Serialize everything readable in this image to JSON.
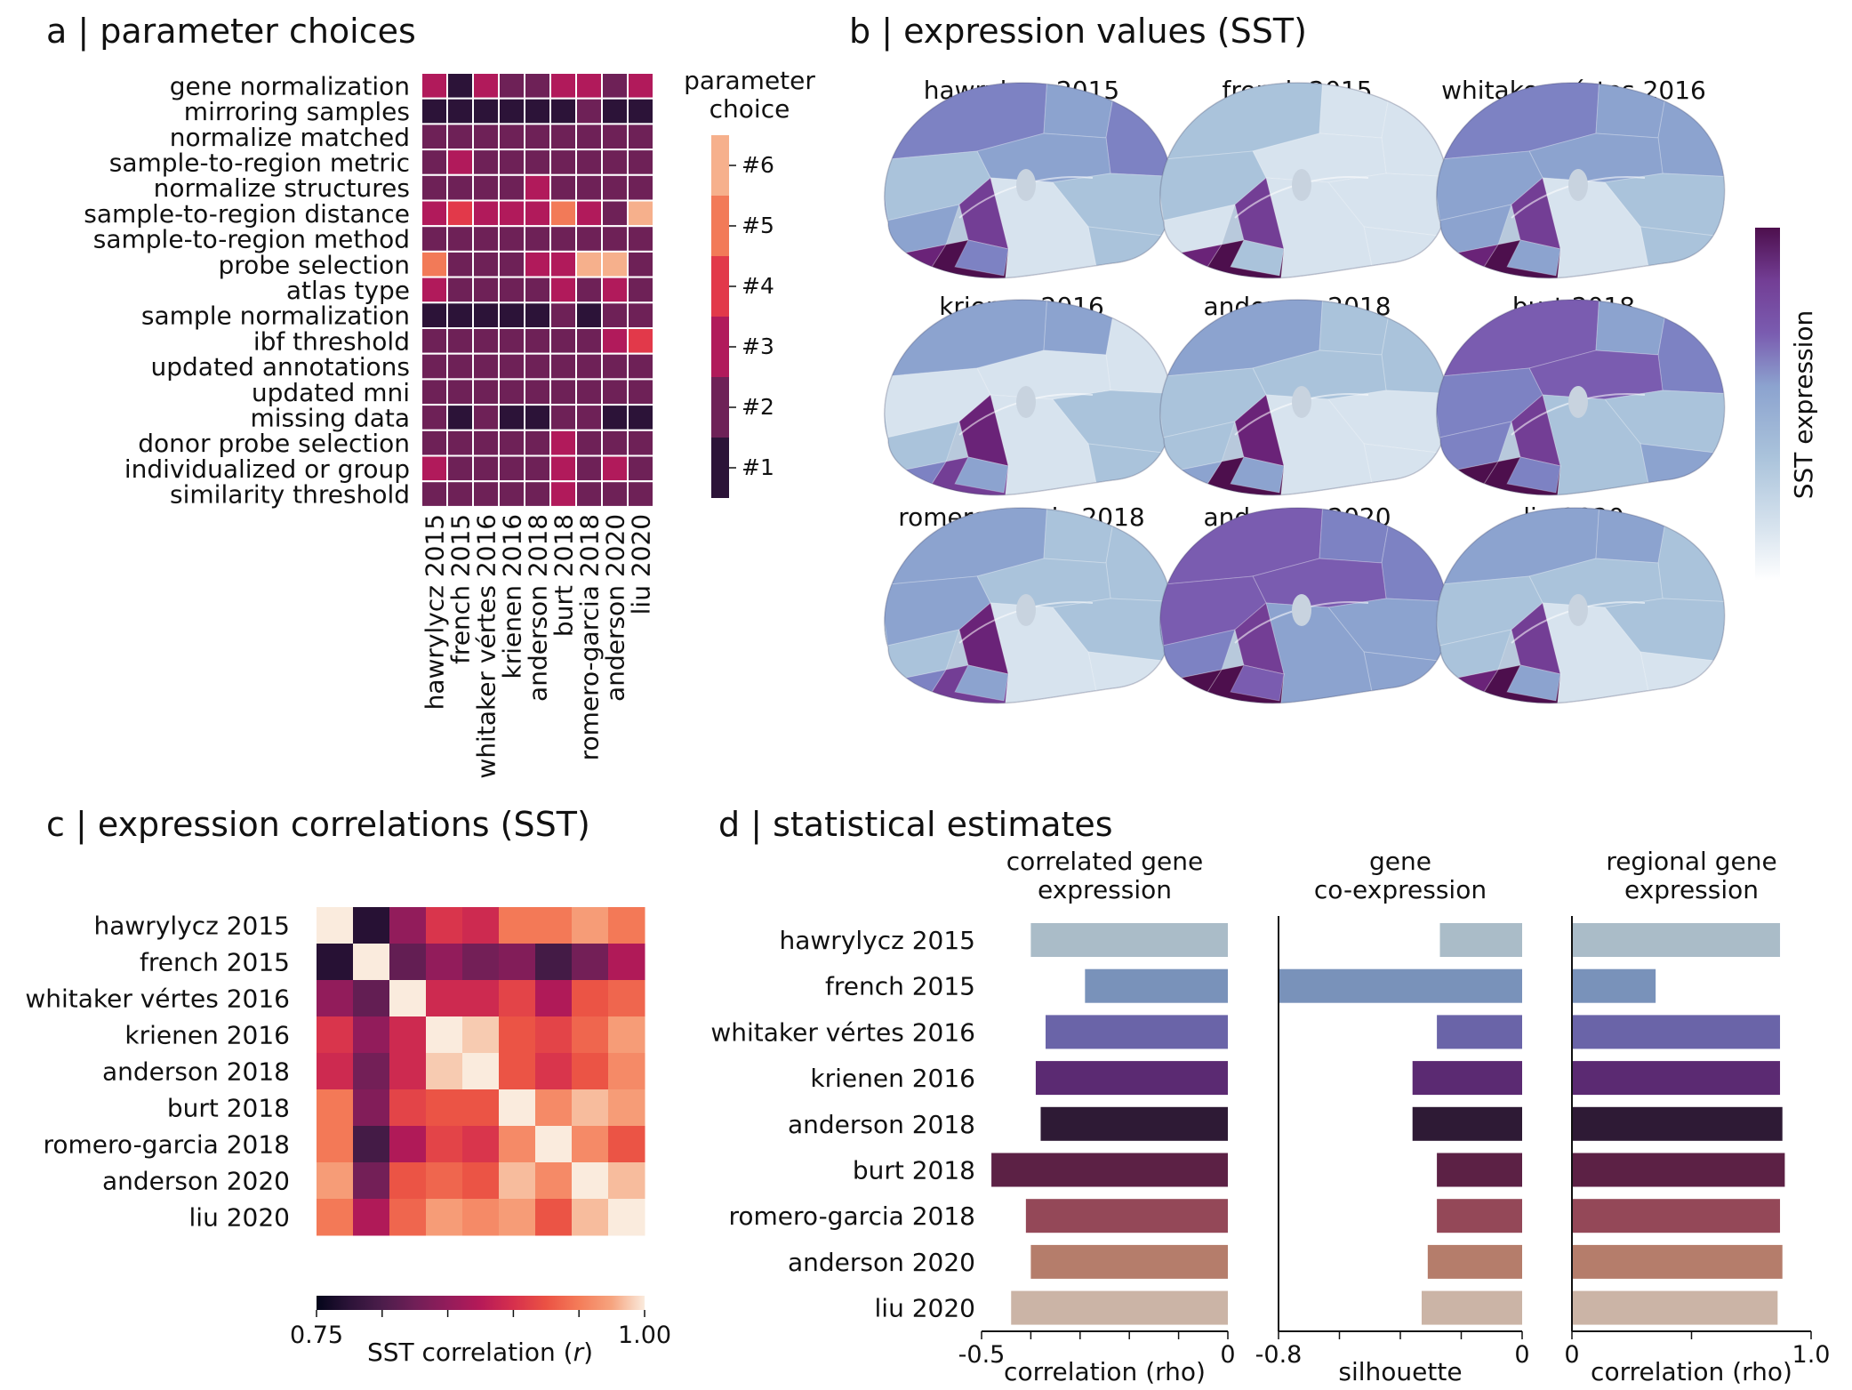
{
  "colors": {
    "rocket": [
      "#03051a",
      "#2c1338",
      "#4c1d4b",
      "#701f57",
      "#931c5b",
      "#b61a58",
      "#d6304d",
      "#eb5244",
      "#f47c59",
      "#f6a47f",
      "#f7c7ab",
      "#faebdd"
    ],
    "dense": [
      "#ffffff",
      "#d7e3ee",
      "#aac3db",
      "#8ca3cf",
      "#7d82c3",
      "#7a5cb0",
      "#733e95",
      "#6a2378",
      "#4d0f4d"
    ],
    "brain_base": "#b8c9dc",
    "bar_colors": [
      "#aabcc8",
      "#7992ba",
      "#6a64a8",
      "#5b2a72",
      "#2e1a35",
      "#5c2145",
      "#944858",
      "#b57d6b",
      "#cbb4a6"
    ],
    "grid_line": "#ffffff"
  },
  "panel_a": {
    "title": "a | parameter choices",
    "legend_title": [
      "parameter",
      "choice"
    ],
    "legend_items": [
      "#6",
      "#5",
      "#4",
      "#3",
      "#2",
      "#1"
    ],
    "legend_colors": [
      "#f6b08c",
      "#f27a58",
      "#e2394a",
      "#b11a5b",
      "#6e2157",
      "#2c1338"
    ],
    "parameters": [
      "gene normalization",
      "mirroring samples",
      "normalize matched",
      "sample-to-region metric",
      "normalize structures",
      "sample-to-region distance",
      "sample-to-region method",
      "probe selection",
      "atlas type",
      "sample normalization",
      "ibf threshold",
      "updated annotations",
      "updated mni",
      "missing data",
      "donor probe selection",
      "individualized or group",
      "similarity threshold"
    ],
    "studies": [
      "hawrylycz 2015",
      "french 2015",
      "whitaker vértes 2016",
      "krienen 2016",
      "anderson 2018",
      "burt 2018",
      "romero-garcia 2018",
      "anderson 2020",
      "liu 2020"
    ],
    "choices": [
      [
        3,
        1,
        3,
        2,
        2,
        3,
        3,
        2,
        3
      ],
      [
        1,
        1,
        1,
        1,
        1,
        1,
        2,
        1,
        1
      ],
      [
        2,
        2,
        2,
        2,
        2,
        2,
        2,
        2,
        2
      ],
      [
        2,
        3,
        2,
        2,
        2,
        2,
        2,
        2,
        2
      ],
      [
        2,
        2,
        2,
        2,
        3,
        2,
        2,
        2,
        2
      ],
      [
        3,
        4,
        3,
        3,
        3,
        5,
        3,
        2,
        6
      ],
      [
        2,
        2,
        2,
        2,
        2,
        2,
        2,
        2,
        2
      ],
      [
        5,
        2,
        2,
        2,
        3,
        3,
        6,
        6,
        2
      ],
      [
        3,
        2,
        2,
        2,
        2,
        3,
        2,
        3,
        2
      ],
      [
        1,
        1,
        1,
        1,
        1,
        2,
        1,
        2,
        2
      ],
      [
        2,
        2,
        2,
        2,
        2,
        2,
        2,
        3,
        4
      ],
      [
        2,
        2,
        2,
        2,
        2,
        2,
        2,
        2,
        2
      ],
      [
        2,
        2,
        2,
        2,
        2,
        2,
        2,
        2,
        2
      ],
      [
        2,
        1,
        2,
        1,
        1,
        2,
        2,
        1,
        1
      ],
      [
        2,
        2,
        2,
        2,
        2,
        3,
        2,
        2,
        2
      ],
      [
        3,
        2,
        2,
        2,
        2,
        3,
        2,
        3,
        2
      ],
      [
        2,
        2,
        2,
        2,
        2,
        3,
        2,
        2,
        2
      ]
    ]
  },
  "panel_b": {
    "title": "b | expression values (SST)",
    "brain_titles": [
      "hawrylycz 2015",
      "french 2015",
      "whitaker vértes 2016",
      "krienen 2016",
      "anderson 2018",
      "burt 2018",
      "romero-garcia 2018",
      "anderson 2020",
      "liu 2020"
    ],
    "colorbar_label": "SST expression",
    "region_levels": [
      [
        4,
        3,
        4,
        3,
        2,
        2,
        1,
        2,
        3,
        6,
        8,
        7,
        4,
        3
      ],
      [
        2,
        1,
        1,
        1,
        1,
        1,
        1,
        2,
        1,
        6,
        8,
        7,
        2,
        1
      ],
      [
        4,
        3,
        3,
        3,
        2,
        2,
        1,
        3,
        3,
        6,
        8,
        7,
        3,
        2
      ],
      [
        3,
        3,
        1,
        1,
        2,
        2,
        1,
        1,
        2,
        7,
        6,
        4,
        3,
        2
      ],
      [
        3,
        2,
        2,
        2,
        1,
        1,
        1,
        2,
        2,
        7,
        8,
        3,
        3,
        2
      ],
      [
        5,
        3,
        4,
        5,
        2,
        3,
        2,
        4,
        4,
        6,
        8,
        8,
        4,
        3
      ],
      [
        3,
        2,
        2,
        2,
        2,
        1,
        1,
        3,
        2,
        7,
        6,
        4,
        3,
        2
      ],
      [
        5,
        4,
        4,
        5,
        3,
        3,
        3,
        5,
        4,
        6,
        8,
        8,
        5,
        3
      ],
      [
        3,
        3,
        2,
        2,
        2,
        1,
        1,
        2,
        2,
        6,
        8,
        7,
        3,
        2
      ]
    ]
  },
  "panel_c": {
    "title": "c | expression correlations (SST)",
    "studies": [
      "hawrylycz 2015",
      "french 2015",
      "whitaker vértes 2016",
      "krienen 2016",
      "anderson 2018",
      "burt 2018",
      "romero-garcia 2018",
      "anderson 2020",
      "liu 2020"
    ],
    "matrix": [
      [
        1.0,
        0.77,
        0.84,
        0.89,
        0.88,
        0.93,
        0.93,
        0.95,
        0.93
      ],
      [
        0.77,
        1.0,
        0.81,
        0.84,
        0.82,
        0.83,
        0.79,
        0.82,
        0.86
      ],
      [
        0.84,
        0.81,
        1.0,
        0.88,
        0.88,
        0.9,
        0.86,
        0.91,
        0.92
      ],
      [
        0.89,
        0.84,
        0.88,
        1.0,
        0.98,
        0.91,
        0.9,
        0.92,
        0.95
      ],
      [
        0.88,
        0.82,
        0.88,
        0.98,
        1.0,
        0.91,
        0.89,
        0.91,
        0.94
      ],
      [
        0.93,
        0.83,
        0.9,
        0.91,
        0.91,
        1.0,
        0.94,
        0.97,
        0.95
      ],
      [
        0.93,
        0.79,
        0.86,
        0.9,
        0.89,
        0.94,
        1.0,
        0.94,
        0.91
      ],
      [
        0.95,
        0.82,
        0.91,
        0.92,
        0.91,
        0.97,
        0.94,
        1.0,
        0.97
      ],
      [
        0.93,
        0.86,
        0.92,
        0.95,
        0.94,
        0.95,
        0.91,
        0.97,
        1.0
      ]
    ],
    "colorbar_min": "0.75",
    "colorbar_max": "1.00",
    "colorbar_label": "SST correlation (",
    "colorbar_label_var": "r",
    "colorbar_label_end": ")"
  },
  "chart_data": [
    {
      "type": "heatmap",
      "title": "a | parameter choices",
      "rows": [
        "gene normalization",
        "mirroring samples",
        "normalize matched",
        "sample-to-region metric",
        "normalize structures",
        "sample-to-region distance",
        "sample-to-region method",
        "probe selection",
        "atlas type",
        "sample normalization",
        "ibf threshold",
        "updated annotations",
        "updated mni",
        "missing data",
        "donor probe selection",
        "individualized or group",
        "similarity threshold"
      ],
      "columns": [
        "hawrylycz 2015",
        "french 2015",
        "whitaker vértes 2016",
        "krienen 2016",
        "anderson 2018",
        "burt 2018",
        "romero-garcia 2018",
        "anderson 2020",
        "liu 2020"
      ],
      "legend": [
        "#1",
        "#2",
        "#3",
        "#4",
        "#5",
        "#6"
      ]
    },
    {
      "type": "heatmap",
      "title": "c | expression correlations (SST)",
      "rows": [
        "hawrylycz 2015",
        "french 2015",
        "whitaker vértes 2016",
        "krienen 2016",
        "anderson 2018",
        "burt 2018",
        "romero-garcia 2018",
        "anderson 2020",
        "liu 2020"
      ],
      "columns": [
        "hawrylycz 2015",
        "french 2015",
        "whitaker vértes 2016",
        "krienen 2016",
        "anderson 2018",
        "burt 2018",
        "romero-garcia 2018",
        "anderson 2020",
        "liu 2020"
      ],
      "range": [
        0.75,
        1.0
      ]
    },
    {
      "type": "bar",
      "orientation": "horizontal",
      "title": "correlated gene expression",
      "categories": [
        "hawrylycz 2015",
        "french 2015",
        "whitaker vértes 2016",
        "krienen 2016",
        "anderson 2018",
        "burt 2018",
        "romero-garcia 2018",
        "anderson 2020",
        "liu 2020"
      ],
      "values": [
        -0.4,
        -0.29,
        -0.37,
        -0.39,
        -0.38,
        -0.48,
        -0.41,
        -0.4,
        -0.44
      ],
      "xlabel": "correlation (rho)",
      "xlim": [
        -0.5,
        0
      ]
    },
    {
      "type": "bar",
      "orientation": "horizontal",
      "title": "gene co-expression",
      "categories": [
        "hawrylycz 2015",
        "french 2015",
        "whitaker vértes 2016",
        "krienen 2016",
        "anderson 2018",
        "burt 2018",
        "romero-garcia 2018",
        "anderson 2020",
        "liu 2020"
      ],
      "values": [
        -0.27,
        -0.8,
        -0.28,
        -0.36,
        -0.36,
        -0.28,
        -0.28,
        -0.31,
        -0.33
      ],
      "xlabel": "silhouette",
      "xlim": [
        -0.8,
        0
      ]
    },
    {
      "type": "bar",
      "orientation": "horizontal",
      "title": "regional gene expression",
      "categories": [
        "hawrylycz 2015",
        "french 2015",
        "whitaker vértes 2016",
        "krienen 2016",
        "anderson 2018",
        "burt 2018",
        "romero-garcia 2018",
        "anderson 2020",
        "liu 2020"
      ],
      "values": [
        0.87,
        0.35,
        0.87,
        0.87,
        0.88,
        0.89,
        0.87,
        0.88,
        0.86
      ],
      "xlabel": "correlation (rho)",
      "xlim": [
        0,
        1.0
      ]
    }
  ],
  "panel_d": {
    "title": "d | statistical estimates",
    "studies": [
      "hawrylycz 2015",
      "french 2015",
      "whitaker vértes 2016",
      "krienen 2016",
      "anderson 2018",
      "burt 2018",
      "romero-garcia 2018",
      "anderson 2020",
      "liu 2020"
    ],
    "subplots": [
      {
        "title": [
          "correlated gene",
          "expression"
        ],
        "xlabel": "correlation (rho)",
        "tick_labels": [
          "-0.5",
          "0"
        ],
        "ticks": [
          -0.5,
          -0.4,
          -0.3,
          -0.2,
          -0.1,
          0
        ],
        "min": -0.5,
        "max": 0
      },
      {
        "title": [
          "gene",
          "co-expression"
        ],
        "xlabel": "silhouette",
        "tick_labels": [
          "-0.8",
          "0"
        ],
        "ticks": [
          -0.8,
          -0.6,
          -0.4,
          -0.2,
          0
        ],
        "min": -0.8,
        "max": 0
      },
      {
        "title": [
          "regional gene",
          "expression"
        ],
        "xlabel": "correlation (rho)",
        "tick_labels": [
          "0",
          "1.0"
        ],
        "ticks": [
          0,
          0.5,
          1.0
        ],
        "min": 0,
        "max": 1.0
      }
    ]
  }
}
